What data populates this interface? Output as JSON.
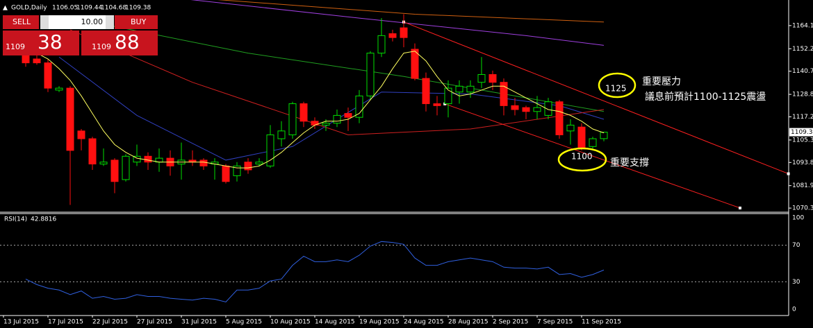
{
  "chart_data": {
    "type": "candlestick",
    "symbol": "GOLD,Daily",
    "trade_panel": {
      "sell": "SELL",
      "lot": "10.00",
      "buy": "BUY",
      "bid_big": "1109",
      "bid_small": "38",
      "ask_big": "1109",
      "ask_small": "88"
    },
    "x_labels": [
      "13 Jul 2015",
      "17 Jul 2015",
      "22 Jul 2015",
      "27 Jul 2015",
      "31 Jul 2015",
      "5 Aug 2015",
      "10 Aug 2015",
      "14 Aug 2015",
      "19 Aug 2015",
      "24 Aug 2015",
      "28 Aug 2015",
      "2 Sep 2015",
      "7 Sep 2015",
      "11 Sep 2015"
    ],
    "open": [
      1149,
      1147,
      1145,
      1131,
      1132,
      1110,
      1106,
      1093,
      1095,
      1085,
      1094,
      1097,
      1094,
      1096,
      1093,
      1095,
      1095,
      1093,
      1092,
      1087,
      1094,
      1093,
      1092,
      1106,
      1108,
      1124,
      1115,
      1113,
      1114,
      1119,
      1117,
      1128,
      1150,
      1160,
      1163,
      1152,
      1137,
      1124,
      1124,
      1130,
      1130,
      1135,
      1139,
      1135,
      1123,
      1122,
      1120,
      1118,
      1125,
      1110,
      1112,
      1102,
      1106.05
    ],
    "high": [
      1152,
      1149,
      1147,
      1133,
      1133,
      1111,
      1107,
      1101,
      1096,
      1098,
      1103,
      1099,
      1101,
      1100,
      1104,
      1100,
      1096,
      1096,
      1093,
      1094,
      1096,
      1096,
      1113,
      1115,
      1125,
      1125,
      1117,
      1116,
      1121,
      1122,
      1131,
      1151,
      1168,
      1162,
      1170,
      1155,
      1140,
      1128,
      1136,
      1136,
      1136,
      1148,
      1141,
      1137,
      1127,
      1123,
      1128,
      1127,
      1126,
      1116,
      1114,
      1107,
      1109.44
    ],
    "low": [
      1143,
      1144,
      1130,
      1130,
      1072,
      1100,
      1090,
      1092,
      1078,
      1084,
      1092,
      1090,
      1089,
      1087,
      1085,
      1092,
      1090,
      1085,
      1083,
      1084,
      1088,
      1092,
      1091,
      1102,
      1106,
      1112,
      1111,
      1110,
      1112,
      1110,
      1114,
      1126,
      1148,
      1156,
      1153,
      1136,
      1120,
      1118,
      1117,
      1124,
      1127,
      1132,
      1131,
      1118,
      1118,
      1116,
      1116,
      1116,
      1106,
      1103,
      1100,
      1101,
      1104.68
    ],
    "close": [
      1145,
      1145,
      1132,
      1132,
      1100,
      1106,
      1093,
      1094,
      1084,
      1097,
      1097,
      1094,
      1096,
      1092,
      1095,
      1094,
      1092,
      1094,
      1084,
      1092,
      1090,
      1094,
      1108,
      1110,
      1124,
      1115,
      1113,
      1114,
      1118,
      1117,
      1128,
      1150,
      1159,
      1158,
      1158,
      1137,
      1124,
      1123,
      1132,
      1133,
      1133,
      1139,
      1135,
      1123,
      1121,
      1120,
      1122,
      1125,
      1108,
      1113,
      1101,
      1106,
      1109.38
    ],
    "ma": {
      "color": "#ffff60",
      "values": [
        1152,
        1150,
        1147,
        1142,
        1136,
        1128,
        1119,
        1110,
        1103,
        1099,
        1096,
        1095,
        1094,
        1094,
        1094,
        1094,
        1094,
        1093,
        1092,
        1091,
        1091,
        1092,
        1095,
        1099,
        1104,
        1109,
        1113,
        1115,
        1115,
        1116,
        1119,
        1126,
        1133,
        1142,
        1150,
        1151,
        1146,
        1138,
        1131,
        1128,
        1129,
        1131,
        1133,
        1133,
        1130,
        1127,
        1124,
        1121,
        1120,
        1118,
        1115,
        1111,
        1109
      ]
    },
    "overlays": [
      {
        "color": "#3040c0",
        "points": [
          [
            3,
            1148
          ],
          [
            10,
            1118
          ],
          [
            18,
            1095
          ],
          [
            24,
            1102
          ],
          [
            32,
            1130
          ],
          [
            40,
            1129
          ],
          [
            48,
            1123
          ],
          [
            52,
            1116
          ]
        ]
      },
      {
        "color": "#20a020",
        "points": [
          [
            6,
            1166
          ],
          [
            20,
            1150
          ],
          [
            34,
            1138
          ],
          [
            46,
            1126
          ],
          [
            52,
            1120
          ]
        ]
      },
      {
        "color": "#d02020",
        "points": [
          [
            4,
            1162
          ],
          [
            15,
            1135
          ],
          [
            29,
            1108
          ],
          [
            40,
            1111
          ],
          [
            52,
            1121
          ]
        ]
      },
      {
        "color": "#a040e0",
        "points": [
          [
            14,
            1178
          ],
          [
            30,
            1168
          ],
          [
            45,
            1159
          ],
          [
            52,
            1154
          ]
        ]
      },
      {
        "color": "#d06010",
        "points": [
          [
            16,
            1178
          ],
          [
            35,
            1170
          ],
          [
            52,
            1166
          ]
        ]
      }
    ],
    "trendlines": [
      {
        "color": "#ff2020",
        "points": [
          [
            34,
            1166
          ],
          [
            68.6,
            1088
          ]
        ]
      },
      {
        "color": "#ff2020",
        "points": [
          [
            37.7,
            1123.9
          ],
          [
            64.25,
            1070.4
          ]
        ]
      }
    ],
    "ylim": [
      1068.6,
      1177.3
    ],
    "yticks": [
      1164.15,
      1152.25,
      {
        "value": 1140.7,
        "label": "1140.70"
      },
      {
        "value": 1128.8,
        "label": "1128.80"
      },
      1117.25,
      1105.35,
      {
        "value": 1093.8,
        "label": "1093.80"
      },
      {
        "value": 1081.9,
        "label": "1081.90"
      },
      1070.35
    ],
    "rsi": {
      "title": "RSI(14)",
      "value": 42.8816,
      "color": "#3060e0",
      "ylim": [
        0,
        100
      ],
      "yticks": [
        100,
        70,
        30,
        0
      ],
      "values": [
        33,
        27,
        23,
        21,
        16,
        20,
        12,
        14,
        11,
        12,
        16,
        14,
        14,
        12,
        11,
        10,
        12,
        11,
        8,
        21,
        21,
        23,
        31,
        33,
        48,
        58,
        52,
        52,
        54,
        52,
        59,
        69,
        74,
        73,
        71,
        56,
        48,
        48,
        52,
        54,
        56,
        54,
        52,
        46,
        45,
        45,
        44,
        46,
        38,
        39,
        35,
        38,
        42.8816
      ]
    },
    "annotations": {
      "resistance_label": "重要壓力",
      "resistance": 1125,
      "note": "議息前預計1100-1125震盪",
      "support": 1100,
      "support_label": "重要支撐"
    }
  }
}
